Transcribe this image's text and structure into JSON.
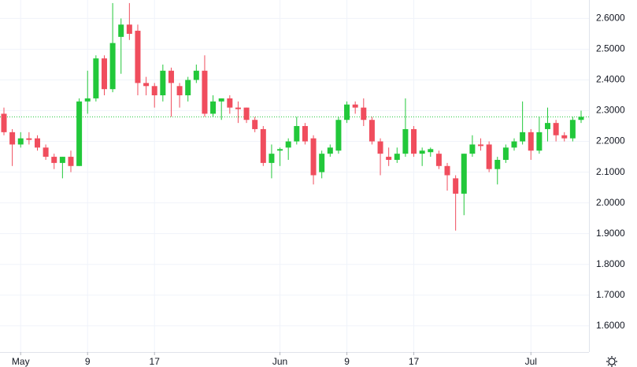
{
  "chart_data": {
    "type": "candlestick",
    "categories": [
      null,
      null,
      "May",
      null,
      null,
      null,
      null,
      null,
      null,
      null,
      "9",
      null,
      null,
      null,
      null,
      null,
      null,
      null,
      "17",
      null,
      null,
      null,
      null,
      null,
      null,
      null,
      null,
      null,
      null,
      null,
      null,
      null,
      null,
      "Jun",
      null,
      null,
      null,
      null,
      null,
      null,
      null,
      "9",
      null,
      null,
      null,
      null,
      null,
      null,
      null,
      "17",
      null,
      null,
      null,
      null,
      null,
      null,
      null,
      null,
      null,
      null,
      null,
      null,
      null,
      "Jul",
      null,
      null,
      null,
      null,
      null,
      null
    ],
    "open": [
      2.29,
      2.23,
      2.19,
      2.21,
      2.21,
      2.18,
      2.15,
      2.13,
      2.15,
      2.12,
      2.33,
      2.34,
      2.47,
      2.37,
      2.54,
      2.58,
      2.56,
      2.39,
      2.38,
      2.35,
      2.43,
      2.38,
      2.35,
      2.4,
      2.43,
      2.29,
      2.33,
      2.34,
      2.31,
      2.31,
      2.27,
      2.24,
      2.13,
      2.17,
      2.18,
      2.2,
      2.25,
      2.21,
      2.1,
      2.16,
      2.17,
      2.27,
      2.32,
      2.31,
      2.27,
      2.2,
      2.15,
      2.14,
      2.16,
      2.24,
      2.16,
      2.165,
      2.16,
      2.12,
      2.08,
      2.03,
      2.16,
      2.19,
      2.19,
      2.11,
      2.14,
      2.18,
      2.2,
      2.23,
      2.17,
      2.24,
      2.26,
      2.22,
      2.21,
      2.27
    ],
    "high": [
      2.31,
      2.24,
      2.23,
      2.23,
      2.22,
      2.19,
      2.16,
      2.15,
      2.17,
      2.34,
      2.43,
      2.48,
      2.48,
      2.65,
      2.6,
      2.65,
      2.58,
      2.41,
      2.39,
      2.45,
      2.44,
      2.39,
      2.41,
      2.45,
      2.48,
      2.35,
      2.34,
      2.35,
      2.33,
      2.31,
      2.28,
      2.25,
      2.19,
      2.18,
      2.21,
      2.28,
      2.26,
      2.22,
      2.17,
      2.19,
      2.28,
      2.33,
      2.33,
      2.34,
      2.28,
      2.21,
      2.18,
      2.18,
      2.34,
      2.25,
      2.18,
      2.18,
      2.17,
      2.13,
      2.09,
      2.16,
      2.22,
      2.21,
      2.2,
      2.15,
      2.19,
      2.21,
      2.33,
      2.24,
      2.28,
      2.31,
      2.27,
      2.23,
      2.28,
      2.3
    ],
    "low": [
      2.22,
      2.12,
      2.18,
      2.19,
      2.17,
      2.14,
      2.11,
      2.08,
      2.1,
      2.12,
      2.29,
      2.33,
      2.35,
      2.36,
      2.42,
      2.53,
      2.35,
      2.35,
      2.31,
      2.33,
      2.28,
      2.31,
      2.33,
      2.39,
      2.28,
      2.28,
      2.27,
      2.29,
      2.26,
      2.26,
      2.23,
      2.12,
      2.08,
      2.12,
      2.14,
      2.19,
      2.19,
      2.06,
      2.08,
      2.15,
      2.16,
      2.26,
      2.29,
      2.25,
      2.19,
      2.09,
      2.12,
      2.13,
      2.15,
      2.15,
      2.12,
      2.15,
      2.11,
      2.04,
      1.91,
      1.96,
      2.15,
      2.17,
      2.1,
      2.06,
      2.13,
      2.17,
      2.19,
      2.14,
      2.16,
      2.2,
      2.2,
      2.2,
      2.2,
      2.26
    ],
    "close": [
      2.23,
      2.19,
      2.21,
      2.205,
      2.18,
      2.15,
      2.13,
      2.15,
      2.12,
      2.33,
      2.34,
      2.47,
      2.37,
      2.52,
      2.58,
      2.55,
      2.39,
      2.38,
      2.35,
      2.43,
      2.39,
      2.35,
      2.4,
      2.43,
      2.29,
      2.33,
      2.34,
      2.31,
      2.305,
      2.27,
      2.24,
      2.13,
      2.16,
      2.175,
      2.2,
      2.25,
      2.2,
      2.09,
      2.16,
      2.18,
      2.27,
      2.32,
      2.31,
      2.27,
      2.2,
      2.16,
      2.14,
      2.16,
      2.24,
      2.16,
      2.17,
      2.175,
      2.12,
      2.09,
      2.03,
      2.16,
      2.19,
      2.185,
      2.11,
      2.14,
      2.18,
      2.2,
      2.23,
      2.17,
      2.23,
      2.26,
      2.22,
      2.21,
      2.27,
      2.28
    ],
    "up_color": "#22c83a",
    "down_color": "#f04d5d",
    "price_line": 2.28,
    "price_line_color": "#22c83a",
    "ylim": [
      1.52,
      2.66
    ],
    "yticks": [
      {
        "value": 1.6,
        "label": "1.6000"
      },
      {
        "value": 1.7,
        "label": "1.7000"
      },
      {
        "value": 1.8,
        "label": "1.8000"
      },
      {
        "value": 1.9,
        "label": "1.9000"
      },
      {
        "value": 2.0,
        "label": "2.0000"
      },
      {
        "value": 2.1,
        "label": "2.1000"
      },
      {
        "value": 2.2,
        "label": "2.2000"
      },
      {
        "value": 2.3,
        "label": "2.3000"
      },
      {
        "value": 2.4,
        "label": "2.4000"
      },
      {
        "value": 2.5,
        "label": "2.5000"
      },
      {
        "value": 2.6,
        "label": "2.6000"
      }
    ],
    "grid": true
  }
}
